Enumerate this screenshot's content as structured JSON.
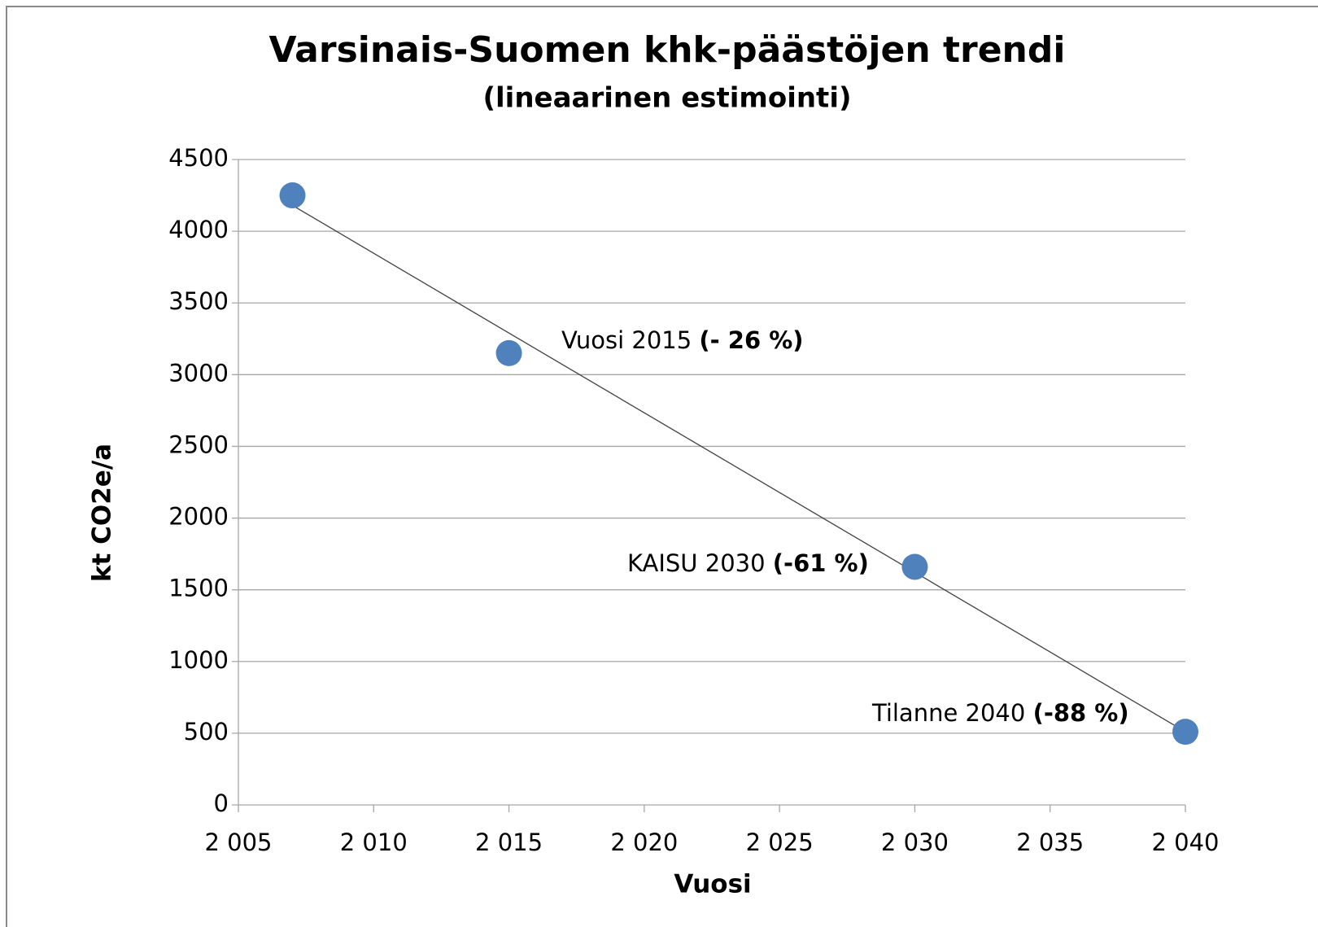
{
  "chart_data": {
    "type": "scatter",
    "title": "Varsinais-Suomen khk-päästöjen trendi",
    "subtitle": "(lineaarinen estimointi)",
    "x_label": "Vuosi",
    "y_label": "kt CO2e/a",
    "series": [
      {
        "color": "#4f81bd",
        "x": [
          2007,
          2015,
          2030,
          2040
        ],
        "values": [
          4250,
          3150,
          1660,
          510
        ]
      }
    ],
    "trendline": {
      "color": "#404040",
      "x": [
        2007,
        2040
      ],
      "values": [
        4180,
        510
      ]
    },
    "annotations": [
      {
        "text": "Vuosi 2015",
        "emphasis": "(- 26 %)"
      },
      {
        "text": "KAISU 2030",
        "emphasis": "(-61 %)"
      },
      {
        "text": "Tilanne 2040",
        "emphasis": "(-88 %)"
      }
    ],
    "xlim": [
      2005,
      2040
    ],
    "xticks": [
      {
        "value": 2005,
        "label": "2 005"
      },
      {
        "value": 2010,
        "label": "2 010"
      },
      {
        "value": 2015,
        "label": "2 015"
      },
      {
        "value": 2020,
        "label": "2 020"
      },
      {
        "value": 2025,
        "label": "2 025"
      },
      {
        "value": 2030,
        "label": "2 030"
      },
      {
        "value": 2035,
        "label": "2 035"
      },
      {
        "value": 2040,
        "label": "2 040"
      }
    ],
    "ylim": [
      0,
      4500
    ],
    "yticks": [
      0,
      500,
      1000,
      1500,
      2000,
      2500,
      3000,
      3500,
      4000,
      4500
    ],
    "grid": true
  }
}
